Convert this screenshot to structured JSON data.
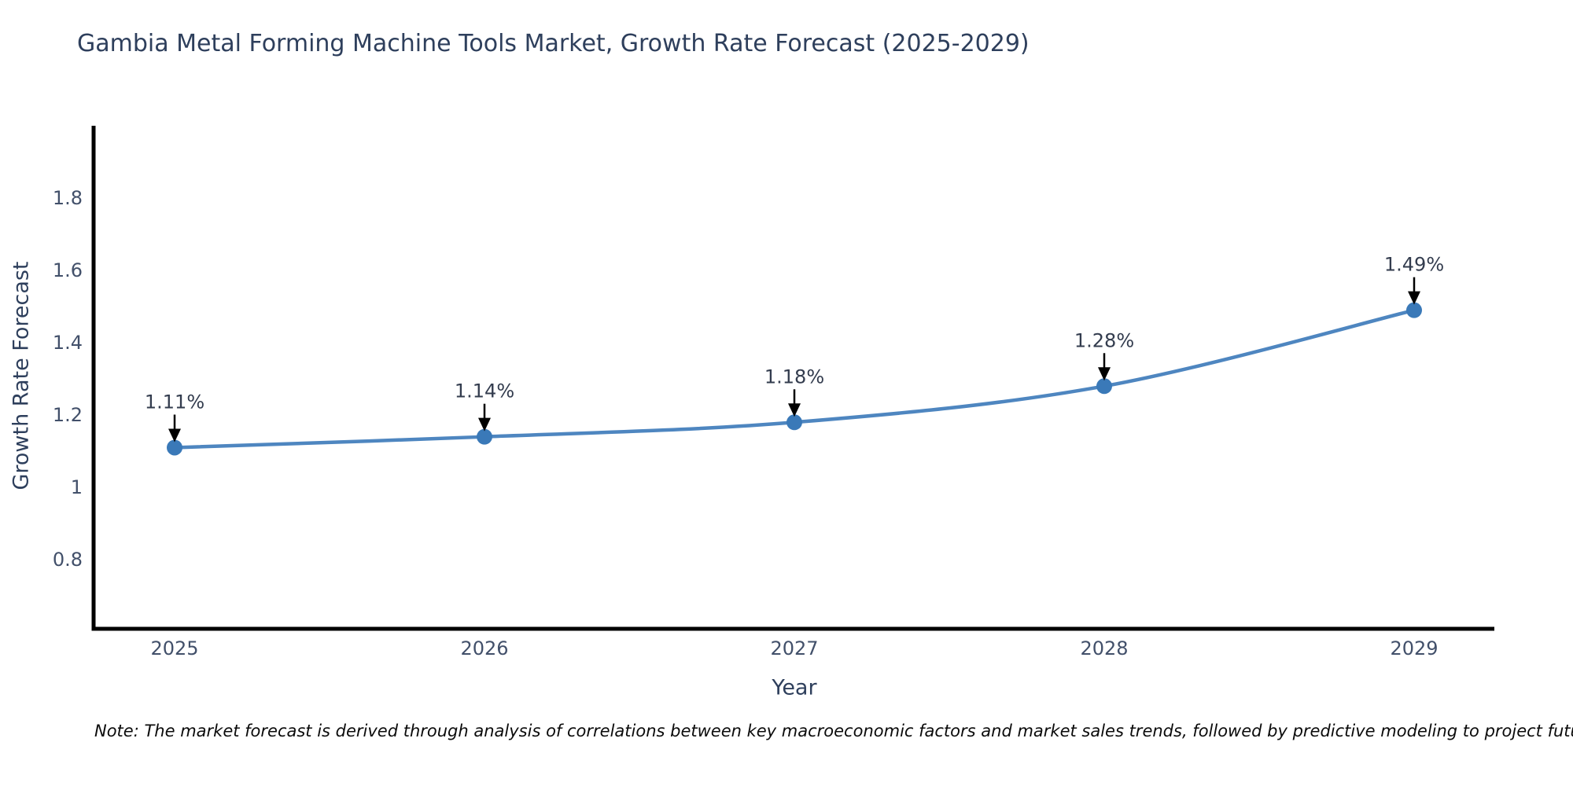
{
  "header": {
    "title": "Gambia Metal Forming Machine Tools Market, Growth Rate Forecast (2025-2029)"
  },
  "footnote": {
    "text": "Note: The market forecast is derived through analysis of correlations between key macroeconomic factors and market sales trends, followed by predictive modeling to project future sales"
  },
  "chart_data": {
    "type": "line",
    "title": "Gambia Metal Forming Machine Tools Market, Growth Rate Forecast (2025-2029)",
    "xlabel": "Year",
    "ylabel": "Growth Rate Forecast",
    "categories": [
      "2025",
      "2026",
      "2027",
      "2028",
      "2029"
    ],
    "values": [
      1.11,
      1.14,
      1.18,
      1.28,
      1.49
    ],
    "point_labels": [
      "1.11%",
      "1.14%",
      "1.18%",
      "1.28%",
      "1.49%"
    ],
    "y_ticks": [
      1.8,
      1.6,
      1.4,
      1.2,
      1.0,
      0.8
    ],
    "y_tick_labels": [
      "1.8",
      "1.6",
      "1.4",
      "1.2",
      "1",
      "0.8"
    ],
    "ylim": [
      0.609,
      2.0
    ],
    "grid": false,
    "legend": false,
    "smooth": true,
    "annotations": "down-arrows-to-points",
    "colors": {
      "line": "#4e86c0",
      "marker": "#3a79b8",
      "arrow": "#000000",
      "spine": "#000000",
      "tick_label": "#42506a",
      "annotation_text": "#333c4e"
    }
  }
}
